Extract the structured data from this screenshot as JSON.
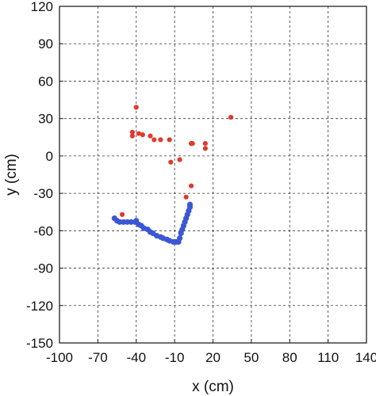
{
  "chart_data": {
    "type": "scatter",
    "title": "",
    "xlabel": "x (cm)",
    "ylabel": "y (cm)",
    "xlim": [
      -100,
      140
    ],
    "ylim": [
      -150,
      120
    ],
    "x_ticks": [
      -100,
      -70,
      -40,
      -10,
      20,
      50,
      80,
      110,
      140
    ],
    "y_ticks": [
      120,
      90,
      60,
      30,
      0,
      -30,
      -60,
      -90,
      -120,
      -150
    ],
    "x_tick_labels": [
      "-100",
      "-70",
      "-40",
      "-10",
      "20",
      "50",
      "80",
      "110",
      "140"
    ],
    "y_tick_labels": [
      "120",
      "90",
      "60",
      "30",
      "0",
      "-30",
      "-60",
      "-90",
      "-120",
      "-150"
    ],
    "grid": true,
    "series": [
      {
        "color": "#e03a2f",
        "points": [
          [
            -40,
            39
          ],
          [
            34,
            31
          ],
          [
            -43,
            19
          ],
          [
            -43,
            16
          ],
          [
            -38,
            18
          ],
          [
            -35,
            17
          ],
          [
            -29,
            16
          ],
          [
            -26,
            13
          ],
          [
            -21,
            13
          ],
          [
            -14,
            13
          ],
          [
            -13,
            -5
          ],
          [
            -6,
            -3
          ],
          [
            3,
            10
          ],
          [
            3,
            10
          ],
          [
            4,
            10
          ],
          [
            14,
            10
          ],
          [
            14,
            6
          ],
          [
            3,
            -24
          ],
          [
            -1,
            -33
          ],
          [
            -51,
            -47
          ]
        ]
      },
      {
        "color": "#3b57d6",
        "points": [
          [
            -57,
            -50
          ],
          [
            -55,
            -52
          ],
          [
            -53,
            -53
          ],
          [
            -50,
            -53
          ],
          [
            -47,
            -53
          ],
          [
            -44,
            -53
          ],
          [
            -41,
            -53
          ],
          [
            -40,
            -52
          ],
          [
            -38,
            -55
          ],
          [
            -36,
            -56
          ],
          [
            -34,
            -58
          ],
          [
            -31,
            -59
          ],
          [
            -29,
            -61
          ],
          [
            -27,
            -62
          ],
          [
            -24,
            -64
          ],
          [
            -21,
            -65
          ],
          [
            -19,
            -66
          ],
          [
            -16,
            -67
          ],
          [
            -14,
            -68
          ],
          [
            -11,
            -69
          ],
          [
            -9,
            -69
          ],
          [
            -7,
            -69
          ],
          [
            -6,
            -66
          ],
          [
            -5,
            -62
          ],
          [
            -4,
            -59
          ],
          [
            -3,
            -56
          ],
          [
            -2,
            -53
          ],
          [
            -1,
            -50
          ],
          [
            0,
            -47
          ],
          [
            1,
            -44
          ],
          [
            2,
            -41
          ],
          [
            2,
            -39
          ]
        ]
      }
    ]
  }
}
